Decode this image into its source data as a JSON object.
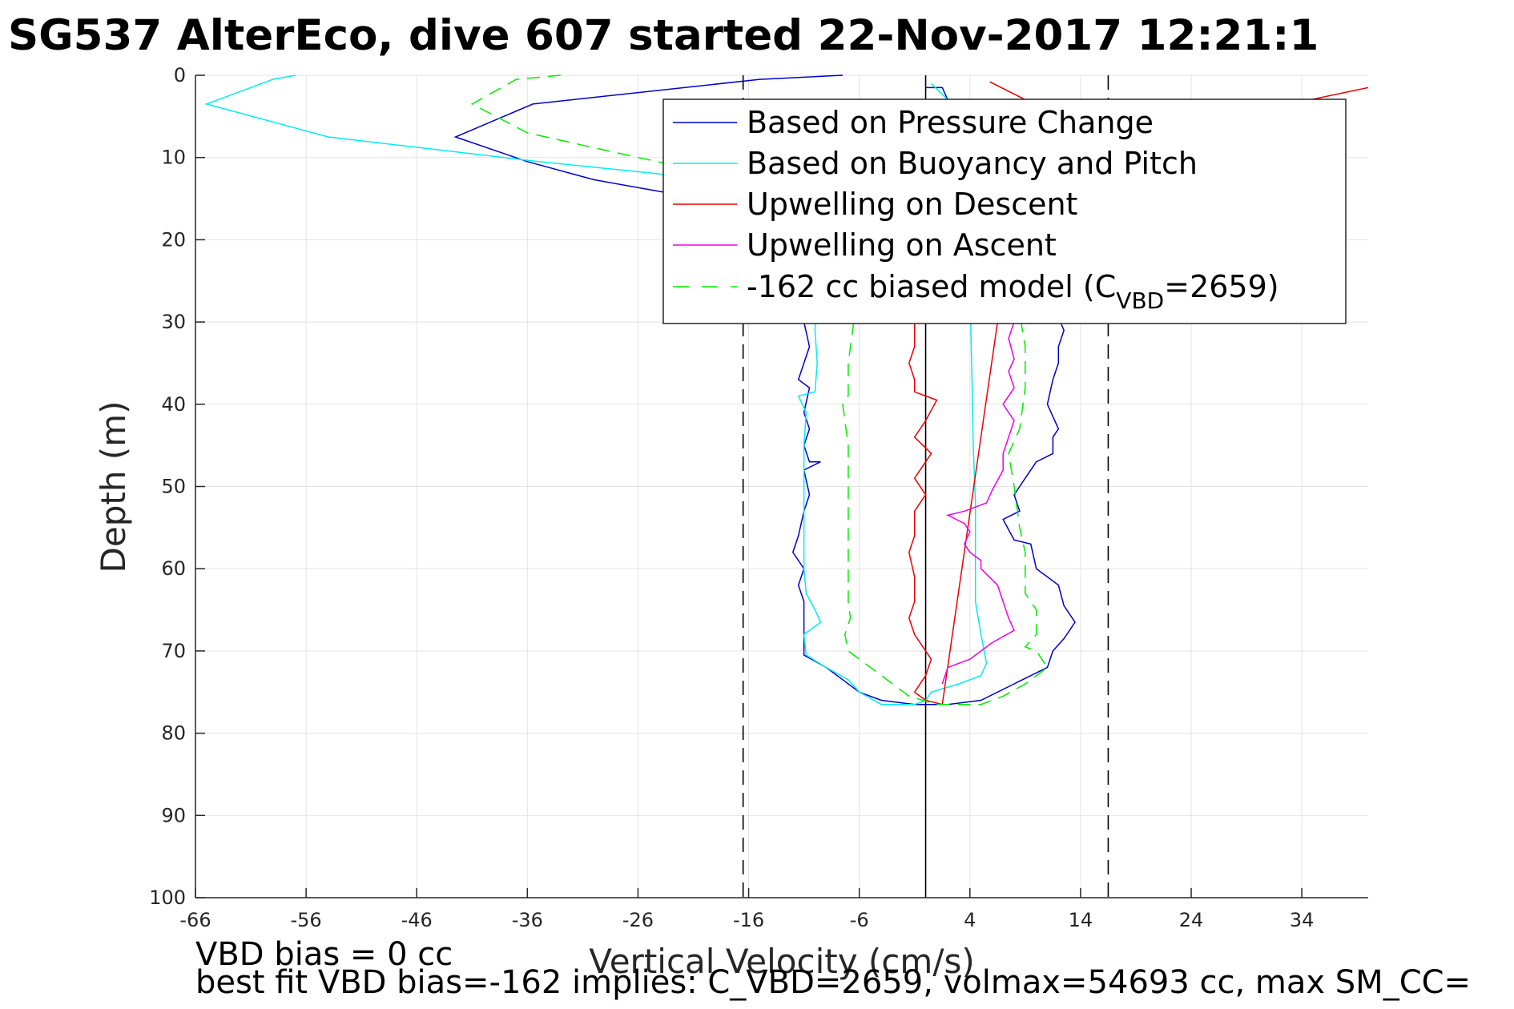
{
  "title": "SG537 AlterEco, dive 607 started 22-Nov-2017 12:21:1",
  "footer": {
    "line1": "VBD bias = 0 cc",
    "line2": "best fit VBD bias=-162 implies: C_VBD=2659, volmax=54693 cc, max SM_CC="
  },
  "chart_data": {
    "type": "line",
    "xlabel": "Vertical Velocity (cm/s)",
    "ylabel": "Depth (m)",
    "xlim": [
      -66,
      40
    ],
    "ylim": [
      0,
      100
    ],
    "y_reversed": true,
    "xticks": [
      -66,
      -56,
      -46,
      -36,
      -26,
      -16,
      -6,
      4,
      14,
      24,
      34
    ],
    "yticks": [
      0,
      10,
      20,
      30,
      40,
      50,
      60,
      70,
      80,
      90,
      100
    ],
    "grid": true,
    "legend_position": "top-right",
    "reference_lines": [
      {
        "x": 0,
        "style": "solid",
        "color": "#000000"
      },
      {
        "x": -16.5,
        "style": "dashed",
        "color": "#000000"
      },
      {
        "x": 16.5,
        "style": "dashed",
        "color": "#000000"
      }
    ],
    "series": [
      {
        "name": "Based on Pressure Change",
        "color": "#0000cc",
        "style": "solid",
        "points": [
          [
            -7.5,
            0
          ],
          [
            -15,
            0.5
          ],
          [
            -35.5,
            3.5
          ],
          [
            -42.5,
            7.5
          ],
          [
            -36,
            10.5
          ],
          [
            -30,
            12.7
          ],
          [
            -22.5,
            14.5
          ],
          [
            -12,
            17
          ],
          [
            -11,
            22
          ],
          [
            -11.5,
            26
          ],
          [
            -11,
            30
          ],
          [
            -10.5,
            33
          ],
          [
            -11,
            35
          ],
          [
            -11.5,
            37
          ],
          [
            -10.5,
            38
          ],
          [
            -11,
            41
          ],
          [
            -10.5,
            43
          ],
          [
            -11,
            45
          ],
          [
            -10.5,
            47
          ],
          [
            -9.5,
            47
          ],
          [
            -11,
            48
          ],
          [
            -10.5,
            51
          ],
          [
            -11,
            53
          ],
          [
            -11.5,
            56
          ],
          [
            -12,
            58
          ],
          [
            -11,
            60
          ],
          [
            -11.5,
            62
          ],
          [
            -11,
            64
          ],
          [
            -11,
            67
          ],
          [
            -11,
            70.5
          ],
          [
            -9,
            72
          ],
          [
            -7.5,
            73.5
          ],
          [
            -6,
            75
          ],
          [
            -4,
            76
          ],
          [
            -1,
            76.5
          ],
          [
            2,
            76.5
          ],
          [
            5,
            76
          ],
          [
            8,
            74
          ],
          [
            11,
            72
          ],
          [
            11.5,
            70
          ],
          [
            12.5,
            68.5
          ],
          [
            13.5,
            66.5
          ],
          [
            12.5,
            64.5
          ],
          [
            12,
            62
          ],
          [
            10,
            60
          ],
          [
            9.5,
            57
          ],
          [
            8,
            56.5
          ],
          [
            7,
            54
          ],
          [
            8.5,
            53
          ],
          [
            8,
            51
          ],
          [
            9,
            49
          ],
          [
            10,
            47
          ],
          [
            11.5,
            46
          ],
          [
            11.5,
            44
          ],
          [
            12,
            43
          ],
          [
            11.5,
            41.5
          ],
          [
            11,
            40
          ],
          [
            11.5,
            37
          ],
          [
            12,
            35
          ],
          [
            12,
            33
          ],
          [
            12.5,
            31
          ],
          [
            11.5,
            28
          ],
          [
            10,
            25
          ],
          [
            9,
            21
          ],
          [
            9,
            15
          ],
          [
            2,
            3
          ],
          [
            1.5,
            1.5
          ],
          [
            0,
            1.5
          ]
        ]
      },
      {
        "name": "Based on Buoyancy and Pitch",
        "color": "#00eeee",
        "style": "solid",
        "points": [
          [
            -57,
            0
          ],
          [
            -59,
            0.5
          ],
          [
            -65,
            3.5
          ],
          [
            -54,
            7.5
          ],
          [
            -35,
            10.5
          ],
          [
            -24,
            12
          ],
          [
            -14,
            16
          ],
          [
            -10,
            21
          ],
          [
            -9.8,
            26
          ],
          [
            -10,
            31
          ],
          [
            -9.8,
            35
          ],
          [
            -10,
            38.5
          ],
          [
            -11.5,
            39
          ],
          [
            -10.8,
            41
          ],
          [
            -11,
            45
          ],
          [
            -11,
            50
          ],
          [
            -11,
            55
          ],
          [
            -11,
            60
          ],
          [
            -10.8,
            63
          ],
          [
            -10,
            65
          ],
          [
            -9.5,
            66.5
          ],
          [
            -11,
            68
          ],
          [
            -10.8,
            70.5
          ],
          [
            -9,
            72
          ],
          [
            -7,
            73.5
          ],
          [
            -6,
            75
          ],
          [
            -4,
            76.5
          ],
          [
            -1,
            76.5
          ],
          [
            0,
            76
          ],
          [
            0.5,
            75
          ],
          [
            3,
            74
          ],
          [
            5,
            73
          ],
          [
            5.5,
            71.5
          ],
          [
            5,
            68
          ],
          [
            4.5,
            64
          ],
          [
            4.5,
            60
          ],
          [
            4.5,
            56
          ],
          [
            4.5,
            52
          ],
          [
            4.3,
            45
          ],
          [
            4.2,
            38
          ],
          [
            4.1,
            32
          ],
          [
            4,
            24
          ],
          [
            3.5,
            14
          ],
          [
            2,
            3
          ],
          [
            0.5,
            1
          ]
        ]
      },
      {
        "name": "Upwelling on Descent",
        "color": "#ee0000",
        "style": "solid",
        "points": [
          [
            -1,
            22
          ],
          [
            -1,
            30
          ],
          [
            -1,
            33
          ],
          [
            -1.5,
            35
          ],
          [
            -1,
            37
          ],
          [
            -1,
            38.5
          ],
          [
            0,
            39
          ],
          [
            1,
            39.5
          ],
          [
            0,
            42
          ],
          [
            -1,
            44
          ],
          [
            0.5,
            46
          ],
          [
            0,
            47
          ],
          [
            -1,
            49
          ],
          [
            0,
            51
          ],
          [
            -1,
            53
          ],
          [
            -1,
            56
          ],
          [
            -1.5,
            58
          ],
          [
            -1,
            61
          ],
          [
            -1,
            64
          ],
          [
            -1.5,
            66
          ],
          [
            -1,
            68
          ],
          [
            0,
            70
          ],
          [
            0.5,
            71
          ],
          [
            0,
            73
          ],
          [
            -1,
            75
          ],
          [
            0,
            76
          ],
          [
            1.5,
            76.5
          ],
          [
            6.5,
            30
          ]
        ]
      },
      {
        "name": "Upwelling on Ascent",
        "color": "#ee00ee",
        "style": "solid",
        "points": [
          [
            1.5,
            74
          ],
          [
            2,
            72
          ],
          [
            4,
            71
          ],
          [
            6,
            69
          ],
          [
            8,
            67.5
          ],
          [
            7.5,
            66
          ],
          [
            7,
            64
          ],
          [
            6.5,
            62
          ],
          [
            5,
            60
          ],
          [
            5,
            59
          ],
          [
            4,
            58
          ],
          [
            3.5,
            57
          ],
          [
            4,
            55.5
          ],
          [
            3.5,
            54.5
          ],
          [
            2,
            53.5
          ],
          [
            3.5,
            53
          ],
          [
            4.5,
            52.5
          ],
          [
            5.5,
            52
          ],
          [
            6,
            50.5
          ],
          [
            7,
            48
          ],
          [
            7,
            46
          ],
          [
            7.5,
            44
          ],
          [
            8,
            42
          ],
          [
            7,
            40
          ],
          [
            8,
            38
          ],
          [
            7.5,
            36
          ],
          [
            8,
            34.5
          ],
          [
            7.5,
            32
          ],
          [
            8,
            30
          ]
        ]
      },
      {
        "name": "-162 cc biased model (C_VBD=2659)",
        "color": "#00ee00",
        "style": "dashed",
        "points": [
          [
            -33,
            0
          ],
          [
            -37,
            0.5
          ],
          [
            -41,
            3.5
          ],
          [
            -36,
            7
          ],
          [
            -26,
            10
          ],
          [
            -19,
            12
          ],
          [
            -12,
            15
          ],
          [
            -7,
            20
          ],
          [
            -7,
            25
          ],
          [
            -6.5,
            30
          ],
          [
            -7,
            35
          ],
          [
            -7,
            39
          ],
          [
            -7.5,
            40
          ],
          [
            -7,
            45
          ],
          [
            -7,
            50
          ],
          [
            -7,
            55
          ],
          [
            -7,
            60
          ],
          [
            -7,
            64
          ],
          [
            -6.8,
            66
          ],
          [
            -7.3,
            68
          ],
          [
            -7,
            70
          ],
          [
            -5,
            72
          ],
          [
            -3,
            74
          ],
          [
            -1.5,
            75.5
          ],
          [
            1,
            76.5
          ],
          [
            5,
            76.5
          ],
          [
            7,
            75.5
          ],
          [
            9,
            74
          ],
          [
            11,
            72
          ],
          [
            10,
            70
          ],
          [
            9,
            69.5
          ],
          [
            10,
            68
          ],
          [
            10,
            65
          ],
          [
            9,
            63
          ],
          [
            9,
            58
          ],
          [
            8.5,
            55
          ],
          [
            8,
            50
          ],
          [
            7.5,
            46
          ],
          [
            8.5,
            43
          ],
          [
            9,
            38
          ],
          [
            9,
            33
          ],
          [
            8.5,
            29
          ]
        ]
      }
    ],
    "legend": {
      "entries": [
        "Based on Pressure Change",
        "Based on Buoyancy and Pitch",
        "Upwelling on Descent",
        "Upwelling on Ascent",
        "-162 cc biased model (C"
      ],
      "subscript": "VBD",
      "suffix": "=2659)"
    },
    "upwelling_descent_top_segment": [
      [
        5.8,
        0.8
      ],
      [
        12,
        5
      ]
    ],
    "right_edge_red_segment": [
      [
        34,
        3.2
      ],
      [
        40,
        1.5
      ]
    ]
  }
}
